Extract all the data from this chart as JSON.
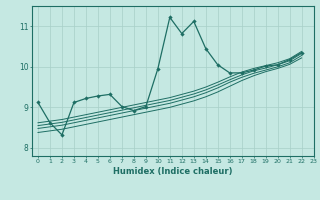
{
  "xlabel": "Humidex (Indice chaleur)",
  "xlim": [
    -0.5,
    23
  ],
  "ylim": [
    7.8,
    11.5
  ],
  "yticks": [
    8,
    9,
    10,
    11
  ],
  "xticks": [
    0,
    1,
    2,
    3,
    4,
    5,
    6,
    7,
    8,
    9,
    10,
    11,
    12,
    13,
    14,
    15,
    16,
    17,
    18,
    19,
    20,
    21,
    22,
    23
  ],
  "bg_color": "#c5e8e2",
  "grid_color": "#a8cfc8",
  "line_color": "#1e6e64",
  "main_line": {
    "x": [
      0,
      1,
      2,
      3,
      4,
      5,
      6,
      7,
      8,
      9,
      10,
      11,
      12,
      13,
      14,
      15,
      16,
      17,
      18,
      19,
      20,
      21,
      22
    ],
    "y": [
      9.12,
      8.62,
      8.32,
      9.12,
      9.22,
      9.28,
      9.32,
      9.02,
      8.92,
      9.02,
      9.95,
      11.22,
      10.82,
      11.12,
      10.45,
      10.05,
      9.85,
      9.85,
      9.92,
      10.02,
      10.05,
      10.18,
      10.35
    ]
  },
  "trend_lines": [
    {
      "x": [
        0,
        1,
        2,
        3,
        4,
        5,
        6,
        7,
        8,
        9,
        10,
        11,
        12,
        13,
        14,
        15,
        16,
        17,
        18,
        19,
        20,
        21,
        22
      ],
      "y": [
        8.38,
        8.42,
        8.46,
        8.52,
        8.58,
        8.64,
        8.7,
        8.76,
        8.82,
        8.88,
        8.94,
        9.0,
        9.08,
        9.16,
        9.26,
        9.38,
        9.52,
        9.66,
        9.78,
        9.88,
        9.96,
        10.06,
        10.22
      ]
    },
    {
      "x": [
        0,
        1,
        2,
        3,
        4,
        5,
        6,
        7,
        8,
        9,
        10,
        11,
        12,
        13,
        14,
        15,
        16,
        17,
        18,
        19,
        20,
        21,
        22
      ],
      "y": [
        8.48,
        8.52,
        8.56,
        8.62,
        8.68,
        8.74,
        8.8,
        8.86,
        8.92,
        8.98,
        9.04,
        9.1,
        9.18,
        9.26,
        9.36,
        9.48,
        9.62,
        9.74,
        9.84,
        9.92,
        10.0,
        10.1,
        10.28
      ]
    },
    {
      "x": [
        0,
        1,
        2,
        3,
        4,
        5,
        6,
        7,
        8,
        9,
        10,
        11,
        12,
        13,
        14,
        15,
        16,
        17,
        18,
        19,
        20,
        21,
        22
      ],
      "y": [
        8.55,
        8.59,
        8.63,
        8.69,
        8.75,
        8.81,
        8.87,
        8.93,
        8.99,
        9.05,
        9.11,
        9.17,
        9.25,
        9.33,
        9.43,
        9.55,
        9.68,
        9.8,
        9.9,
        9.97,
        10.05,
        10.15,
        10.33
      ]
    },
    {
      "x": [
        0,
        1,
        2,
        3,
        4,
        5,
        6,
        7,
        8,
        9,
        10,
        11,
        12,
        13,
        14,
        15,
        16,
        17,
        18,
        19,
        20,
        21,
        22
      ],
      "y": [
        8.62,
        8.66,
        8.7,
        8.76,
        8.82,
        8.88,
        8.94,
        9.0,
        9.06,
        9.12,
        9.18,
        9.24,
        9.32,
        9.4,
        9.5,
        9.62,
        9.75,
        9.87,
        9.96,
        10.03,
        10.1,
        10.2,
        10.38
      ]
    }
  ]
}
